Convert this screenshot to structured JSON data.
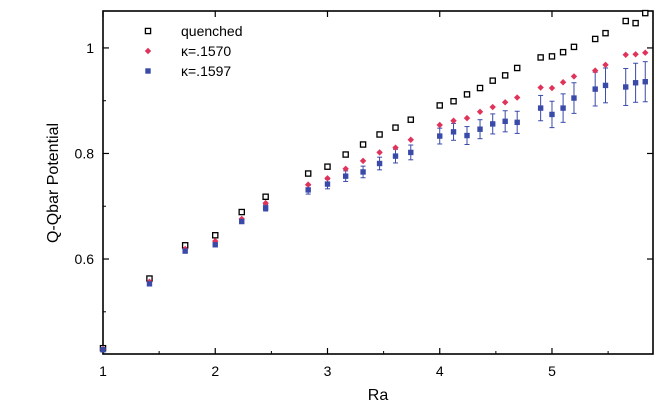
{
  "chart_data": {
    "type": "scatter",
    "xlabel": "Ra",
    "ylabel": "Q-Qbar Potential",
    "xlim": [
      1,
      5.9
    ],
    "ylim": [
      0.42,
      1.07
    ],
    "xticks": [
      1,
      2,
      3,
      4,
      5
    ],
    "yticks": [
      0.6,
      0.8,
      1.0
    ],
    "xtick_labels": [
      "1",
      "2",
      "3",
      "4",
      "5"
    ],
    "ytick_labels": [
      "0.6",
      "0.8",
      "1"
    ],
    "grid": false,
    "legend_position": "top-left",
    "series": [
      {
        "name": "quenched",
        "marker": "open-square",
        "color": "#000000",
        "x": [
          1.0,
          1.414,
          1.732,
          2.0,
          2.236,
          2.449,
          2.828,
          3.0,
          3.162,
          3.317,
          3.464,
          3.606,
          3.742,
          4.0,
          4.123,
          4.243,
          4.359,
          4.472,
          4.583,
          4.69,
          4.899,
          5.0,
          5.099,
          5.196,
          5.385,
          5.477,
          5.657,
          5.745,
          5.831
        ],
        "y": [
          0.431,
          0.563,
          0.626,
          0.645,
          0.689,
          0.718,
          0.762,
          0.775,
          0.798,
          0.817,
          0.836,
          0.849,
          0.864,
          0.891,
          0.899,
          0.912,
          0.924,
          0.938,
          0.948,
          0.962,
          0.982,
          0.984,
          0.992,
          1.002,
          1.017,
          1.028,
          1.051,
          1.047,
          1.066
        ]
      },
      {
        "name": "κ=.1570",
        "marker": "diamond",
        "color": "#e0335a",
        "x": [
          1.0,
          1.414,
          1.732,
          2.0,
          2.236,
          2.449,
          2.828,
          3.0,
          3.162,
          3.317,
          3.464,
          3.606,
          3.742,
          4.0,
          4.123,
          4.243,
          4.359,
          4.472,
          4.583,
          4.69,
          4.899,
          5.0,
          5.099,
          5.196,
          5.385,
          5.477,
          5.657,
          5.745,
          5.831
        ],
        "y": [
          0.429,
          0.557,
          0.619,
          0.634,
          0.676,
          0.706,
          0.741,
          0.753,
          0.771,
          0.786,
          0.802,
          0.811,
          0.826,
          0.854,
          0.862,
          0.867,
          0.879,
          0.888,
          0.897,
          0.906,
          0.925,
          0.924,
          0.935,
          0.946,
          0.957,
          0.968,
          0.987,
          0.988,
          0.991
        ]
      },
      {
        "name": "κ=.1597",
        "marker": "filled-square",
        "color": "#3a4aa8",
        "x": [
          1.0,
          1.414,
          1.732,
          2.0,
          2.236,
          2.449,
          2.828,
          3.0,
          3.162,
          3.317,
          3.464,
          3.606,
          3.742,
          4.0,
          4.123,
          4.243,
          4.359,
          4.472,
          4.583,
          4.69,
          4.899,
          5.0,
          5.099,
          5.196,
          5.385,
          5.477,
          5.657,
          5.745,
          5.831
        ],
        "y": [
          0.428,
          0.553,
          0.615,
          0.627,
          0.671,
          0.697,
          0.731,
          0.742,
          0.757,
          0.765,
          0.781,
          0.795,
          0.802,
          0.833,
          0.841,
          0.834,
          0.846,
          0.856,
          0.861,
          0.859,
          0.886,
          0.874,
          0.886,
          0.905,
          0.922,
          0.929,
          0.926,
          0.934,
          0.936
        ],
        "err": [
          0,
          0,
          0,
          0,
          0,
          0.006,
          0.008,
          0.009,
          0.01,
          0.011,
          0.012,
          0.013,
          0.014,
          0.015,
          0.016,
          0.017,
          0.018,
          0.019,
          0.02,
          0.021,
          0.024,
          0.025,
          0.027,
          0.029,
          0.032,
          0.033,
          0.035,
          0.037,
          0.038
        ]
      }
    ]
  }
}
